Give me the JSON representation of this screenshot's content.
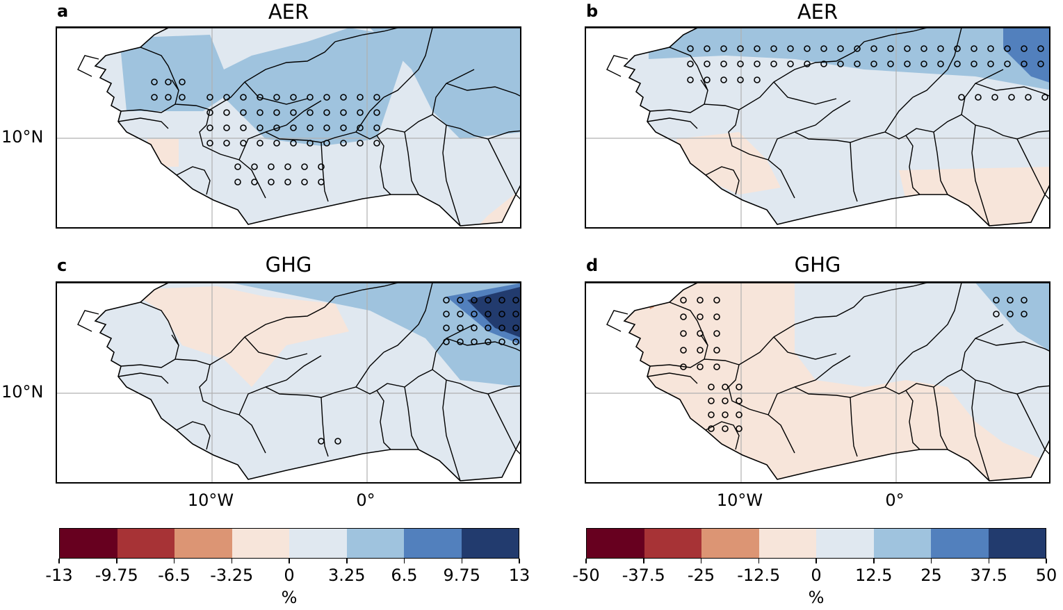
{
  "panels": [
    {
      "letter": "a",
      "title": "AER"
    },
    {
      "letter": "b",
      "title": "AER"
    },
    {
      "letter": "c",
      "title": "GHG"
    },
    {
      "letter": "d",
      "title": "GHG"
    }
  ],
  "axes": {
    "lat_label": "10°N",
    "lon_labels": [
      "10°W",
      "0°"
    ]
  },
  "colorbars": [
    {
      "ticks": [
        "-13",
        "-9.75",
        "-6.5",
        "-3.25",
        "0",
        "3.25",
        "6.5",
        "9.75",
        "13"
      ],
      "unit": "%"
    },
    {
      "ticks": [
        "-50",
        "-37.5",
        "-25",
        "-12.5",
        "0",
        "12.5",
        "25",
        "37.5",
        "50"
      ],
      "unit": "%"
    }
  ],
  "colors": {
    "c1": "#67001f",
    "c2": "#a73336",
    "c3": "#dc9574",
    "c4": "#f7e5da",
    "c5": "#e0e8f0",
    "c6": "#9fc3de",
    "c7": "#5280bd",
    "c8": "#223b6e"
  }
}
